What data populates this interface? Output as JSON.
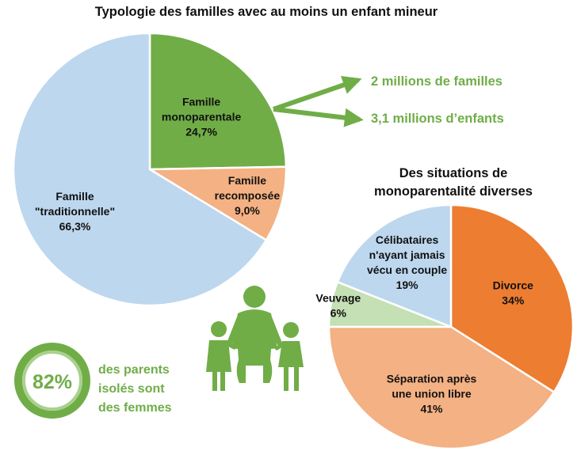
{
  "colors": {
    "accent_green": "#70ad47",
    "pie1": [
      "#70ad47",
      "#f4b183",
      "#bdd7ee"
    ],
    "pie2": [
      "#ed7d31",
      "#f4b183",
      "#c5e0b4",
      "#bdd7ee"
    ]
  },
  "chart_data": [
    {
      "type": "pie",
      "title": "Typologie des familles avec au moins un enfant mineur",
      "slices": [
        {
          "label": [
            "Famille",
            "monoparentale"
          ],
          "value": 24.7,
          "value_label": "24,7%"
        },
        {
          "label": [
            "Famille",
            "recomposée"
          ],
          "value": 9.0,
          "value_label": "9,0%"
        },
        {
          "label": [
            "Famille",
            "\"traditionnelle\""
          ],
          "value": 66.3,
          "value_label": "66,3%"
        }
      ],
      "callouts": [
        "2 millions de familles",
        "3,1 millions d’enfants"
      ]
    },
    {
      "type": "pie",
      "title": [
        "Des situations de",
        "monoparentalité diverses"
      ],
      "slices": [
        {
          "label": [
            "Divorce"
          ],
          "value": 34,
          "value_label": "34%"
        },
        {
          "label": [
            "Séparation après",
            "une union libre"
          ],
          "value": 41,
          "value_label": "41%"
        },
        {
          "label": [
            "Veuvage"
          ],
          "value": 6,
          "value_label": "6%"
        },
        {
          "label": [
            "Célibataires",
            "n'ayant jamais",
            "vécu en couple"
          ],
          "value": 19,
          "value_label": "19%"
        }
      ]
    }
  ],
  "stat": {
    "percent": "82%",
    "text": [
      "des parents",
      "isolés sont",
      "des femmes"
    ]
  },
  "icons": [
    "family-icon"
  ]
}
